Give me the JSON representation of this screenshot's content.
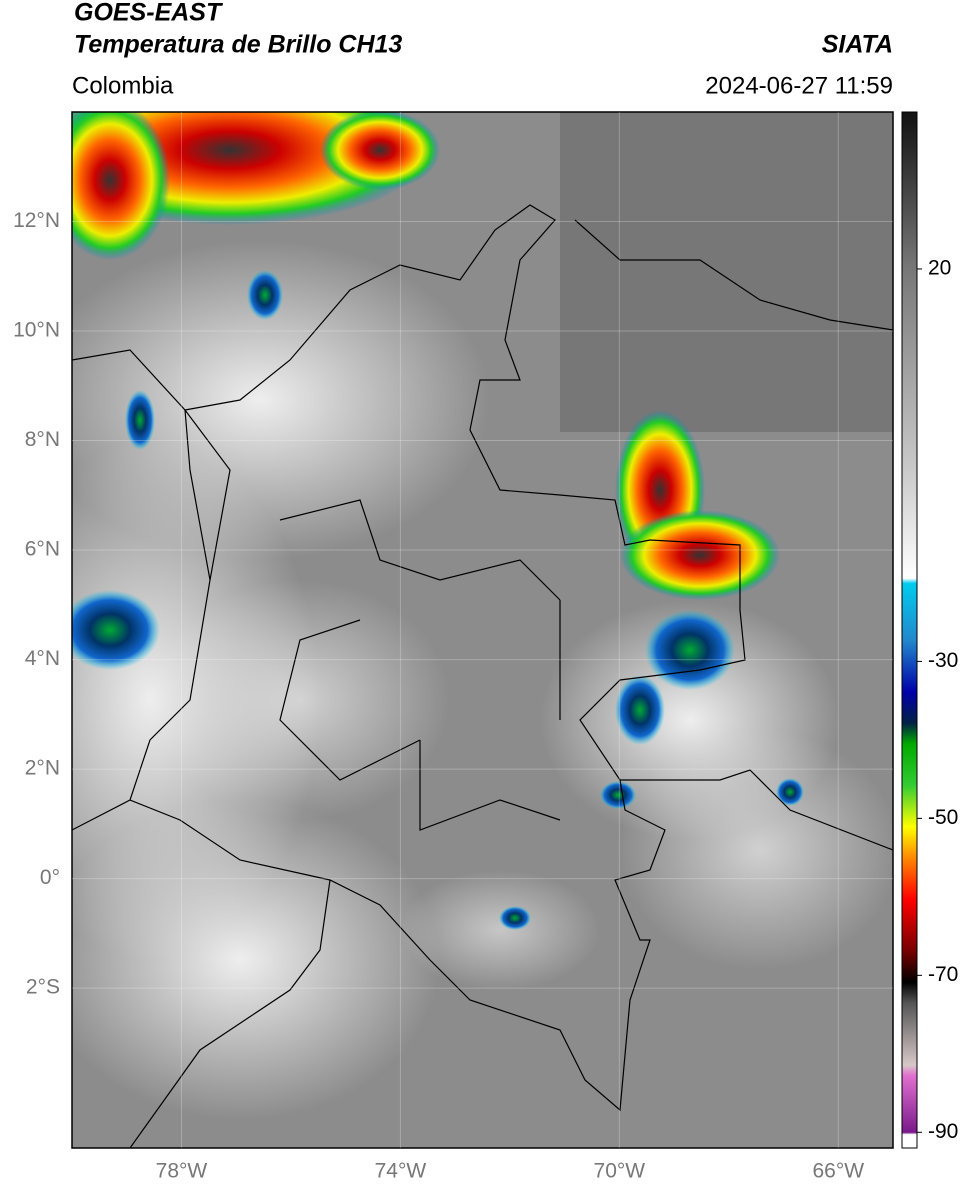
{
  "header": {
    "title_line1": "GOES-EAST",
    "title_line2": "Temperatura de Brillo CH13",
    "source": "SIATA",
    "region": "Colombia",
    "timestamp": "2024-06-27 11:59"
  },
  "map": {
    "latlim": [
      -4.92,
      14
    ],
    "lonlim": [
      -80,
      -65
    ],
    "lat_ticks": [
      {
        "value": 12,
        "label": "12°N"
      },
      {
        "value": 10,
        "label": "10°N"
      },
      {
        "value": 8,
        "label": "8°N"
      },
      {
        "value": 6,
        "label": "6°N"
      },
      {
        "value": 4,
        "label": "4°N"
      },
      {
        "value": 2,
        "label": "2°N"
      },
      {
        "value": 0,
        "label": "0°"
      },
      {
        "value": -2,
        "label": "2°S"
      }
    ],
    "lon_ticks": [
      {
        "value": -78,
        "label": "78°W"
      },
      {
        "value": -74,
        "label": "74°W"
      },
      {
        "value": -70,
        "label": "70°W"
      },
      {
        "value": -66,
        "label": "66°W"
      }
    ]
  },
  "colorbar": {
    "lim": [
      -92,
      40
    ],
    "ticks": [
      20,
      -30,
      -50,
      -70,
      -90
    ]
  }
}
